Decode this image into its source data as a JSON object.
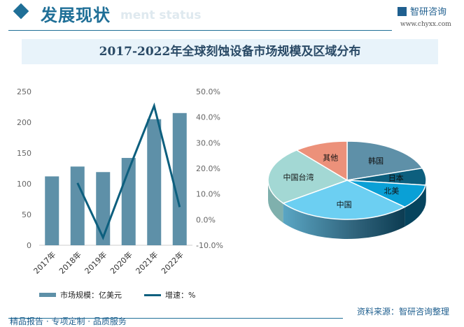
{
  "header": {
    "title": "发展现状",
    "subtitle": "ment status",
    "brand": "智研咨询",
    "url": "www.chyxx.com"
  },
  "footer": {
    "source": "资料来源：智研咨询整理",
    "slogan": "精品报告 · 专项定制 · 品质服务"
  },
  "colors": {
    "bar": "#5e90a8",
    "line": "#0d5f7e",
    "accent": "#1f6f97"
  },
  "chart_data": [
    {
      "type": "bar+line",
      "title": "2017-2022年全球刻蚀设备市场规模及区域分布",
      "categories": [
        "2017年",
        "2018年",
        "2019年",
        "2020年",
        "2021年",
        "2022年"
      ],
      "series": [
        {
          "name": "市场规模：亿美元",
          "type": "bar",
          "axis": "left",
          "values": [
            112,
            128,
            119,
            142,
            205,
            215
          ]
        },
        {
          "name": "增速：%",
          "type": "line",
          "axis": "right",
          "values": [
            null,
            14.3,
            -7.0,
            19.3,
            44.4,
            4.9
          ]
        }
      ],
      "ylim": [
        0,
        250
      ],
      "yticks": [
        "0",
        "50",
        "100",
        "150",
        "200",
        "250"
      ],
      "y2lim": [
        -10,
        50
      ],
      "y2ticks": [
        "-10.0%",
        "0.0%",
        "10.0%",
        "20.0%",
        "30.0%",
        "40.0%",
        "50.0%"
      ],
      "legend": "bottom"
    },
    {
      "type": "pie",
      "style": "3d",
      "labels": [
        "韩国",
        "日本",
        "北美",
        "中国",
        "中国台湾",
        "其他"
      ],
      "values": [
        20,
        7,
        10,
        28,
        24,
        11
      ],
      "colors": [
        "#5e90a8",
        "#0d5f7e",
        "#0aa0d6",
        "#6ccff2",
        "#a3d8d4",
        "#ec917a"
      ]
    }
  ]
}
